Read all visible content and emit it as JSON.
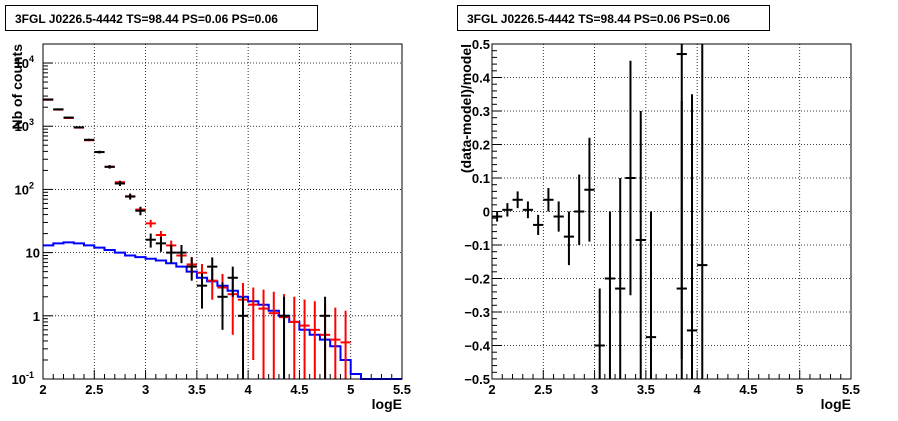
{
  "chart_data": [
    {
      "type": "line",
      "title": "3FGL J0226.5-4442 TS=98.44 PS=0.06 PS=0.06",
      "xlabel": "logE",
      "ylabel": "Nb of counts",
      "xlim": [
        2,
        5.5
      ],
      "ylim": [
        0.1,
        20000
      ],
      "yscale": "log",
      "grid": true,
      "x_ticks": [
        "2",
        "2.5",
        "3",
        "3.5",
        "4",
        "4.5",
        "5",
        "5.5"
      ],
      "y_ticks": [
        {
          "value": 0.1,
          "base": "10",
          "exp": "-1"
        },
        {
          "value": 1,
          "base": "1",
          "exp": ""
        },
        {
          "value": 10,
          "base": "10",
          "exp": ""
        },
        {
          "value": 100,
          "base": "10",
          "exp": "2"
        },
        {
          "value": 1000,
          "base": "10",
          "exp": "3"
        },
        {
          "value": 10000,
          "base": "10",
          "exp": "4"
        }
      ],
      "series": [
        {
          "color": "#000000",
          "points": [
            {
              "x": 2.05,
              "y": 2650,
              "lo": 2580,
              "hi": 2720
            },
            {
              "x": 2.15,
              "y": 1850,
              "lo": 1800,
              "hi": 1900
            },
            {
              "x": 2.25,
              "y": 1370,
              "lo": 1330,
              "hi": 1410
            },
            {
              "x": 2.35,
              "y": 960,
              "lo": 930,
              "hi": 990
            },
            {
              "x": 2.45,
              "y": 610,
              "lo": 585,
              "hi": 635
            },
            {
              "x": 2.55,
              "y": 390,
              "lo": 370,
              "hi": 410
            },
            {
              "x": 2.65,
              "y": 228,
              "lo": 213,
              "hi": 243
            },
            {
              "x": 2.75,
              "y": 124,
              "lo": 113,
              "hi": 135
            },
            {
              "x": 2.85,
              "y": 77,
              "lo": 69,
              "hi": 86
            },
            {
              "x": 2.95,
              "y": 46,
              "lo": 39,
              "hi": 53
            },
            {
              "x": 3.05,
              "y": 16,
              "lo": 12,
              "hi": 20
            },
            {
              "x": 3.15,
              "y": 14,
              "lo": 10.3,
              "hi": 17.7
            },
            {
              "x": 3.25,
              "y": 10,
              "lo": 6.8,
              "hi": 13.2
            },
            {
              "x": 3.35,
              "y": 10,
              "lo": 6.8,
              "hi": 13.2
            },
            {
              "x": 3.45,
              "y": 6,
              "lo": 3.6,
              "hi": 8.4
            },
            {
              "x": 3.55,
              "y": 3,
              "lo": 1.3,
              "hi": 4.7
            },
            {
              "x": 3.65,
              "y": 6,
              "lo": 3.6,
              "hi": 8.4
            },
            {
              "x": 3.75,
              "y": 2,
              "lo": 0.6,
              "hi": 3.4
            },
            {
              "x": 3.85,
              "y": 4,
              "lo": 2,
              "hi": 6
            },
            {
              "x": 3.95,
              "y": 1,
              "lo": 0.1,
              "hi": 2
            },
            {
              "x": 4.35,
              "y": 1,
              "lo": 0.1,
              "hi": 2
            },
            {
              "x": 4.75,
              "y": 1,
              "lo": 0.1,
              "hi": 2
            }
          ]
        },
        {
          "color": "#ff0000",
          "points": [
            {
              "x": 2.05,
              "y": 2620,
              "lo": 2560,
              "hi": 2680
            },
            {
              "x": 2.15,
              "y": 1830,
              "lo": 1790,
              "hi": 1870
            },
            {
              "x": 2.25,
              "y": 1350,
              "lo": 1320,
              "hi": 1380
            },
            {
              "x": 2.35,
              "y": 950,
              "lo": 925,
              "hi": 975
            },
            {
              "x": 2.45,
              "y": 600,
              "lo": 580,
              "hi": 620
            },
            {
              "x": 2.55,
              "y": 390,
              "lo": 375,
              "hi": 405
            },
            {
              "x": 2.65,
              "y": 228,
              "lo": 218,
              "hi": 238
            },
            {
              "x": 2.75,
              "y": 130,
              "lo": 122,
              "hi": 138
            },
            {
              "x": 2.85,
              "y": 78,
              "lo": 72,
              "hi": 84
            },
            {
              "x": 2.95,
              "y": 48,
              "lo": 43,
              "hi": 53
            },
            {
              "x": 3.05,
              "y": 29,
              "lo": 25,
              "hi": 33
            },
            {
              "x": 3.15,
              "y": 19,
              "lo": 16,
              "hi": 22
            },
            {
              "x": 3.25,
              "y": 13,
              "lo": 10.5,
              "hi": 15.5
            },
            {
              "x": 3.35,
              "y": 9,
              "lo": 7,
              "hi": 11
            },
            {
              "x": 3.45,
              "y": 6.5,
              "lo": 4.5,
              "hi": 8.5
            },
            {
              "x": 3.55,
              "y": 4.8,
              "lo": 3.0,
              "hi": 6.6
            },
            {
              "x": 3.65,
              "y": 3.6,
              "lo": 1.8,
              "hi": 5.4
            },
            {
              "x": 3.75,
              "y": 2.8,
              "lo": 0.8,
              "hi": 4.6
            },
            {
              "x": 3.85,
              "y": 2.2,
              "lo": 0.5,
              "hi": 3.9
            },
            {
              "x": 3.95,
              "y": 1.8,
              "lo": 0.3,
              "hi": 3.3
            },
            {
              "x": 4.05,
              "y": 1.5,
              "lo": 0.2,
              "hi": 2.8
            },
            {
              "x": 4.15,
              "y": 1.3,
              "lo": 0.1,
              "hi": 2.6
            },
            {
              "x": 4.25,
              "y": 1.1,
              "lo": 0.1,
              "hi": 2.4
            },
            {
              "x": 4.35,
              "y": 0.95,
              "lo": 0.1,
              "hi": 2.2
            },
            {
              "x": 4.45,
              "y": 0.8,
              "lo": 0.1,
              "hi": 2.0
            },
            {
              "x": 4.55,
              "y": 0.7,
              "lo": 0.1,
              "hi": 1.8
            },
            {
              "x": 4.65,
              "y": 0.6,
              "lo": 0.1,
              "hi": 1.7
            },
            {
              "x": 4.75,
              "y": 0.5,
              "lo": 0.1,
              "hi": 1.5
            },
            {
              "x": 4.85,
              "y": 0.42,
              "lo": 0.1,
              "hi": 1.35
            },
            {
              "x": 4.95,
              "y": 0.38,
              "lo": 0.1,
              "hi": 1.2
            }
          ]
        },
        {
          "color": "#0000ff",
          "step_edges": [
            2.0,
            2.1,
            2.2,
            2.3,
            2.4,
            2.5,
            2.6,
            2.7,
            2.8,
            2.9,
            3.0,
            3.1,
            3.2,
            3.3,
            3.4,
            3.5,
            3.6,
            3.7,
            3.8,
            3.9,
            4.0,
            4.1,
            4.2,
            4.3,
            4.4,
            4.5,
            4.6,
            4.7,
            4.8,
            4.9,
            5.0,
            5.1,
            5.5
          ],
          "step_values": [
            13,
            14,
            14.5,
            14,
            13,
            12,
            11,
            10,
            9,
            8.5,
            8,
            7.5,
            6.8,
            6,
            5,
            4,
            3.5,
            3,
            2.5,
            2,
            1.7,
            1.5,
            1.2,
            1.0,
            0.8,
            0.6,
            0.5,
            0.42,
            0.33,
            0.2,
            0.12,
            0.1
          ]
        }
      ]
    },
    {
      "type": "scatter",
      "title": "3FGL J0226.5-4442 TS=98.44 PS=0.06 PS=0.06",
      "xlabel": "logE",
      "ylabel": "(data-model)/model",
      "xlim": [
        2,
        5.5
      ],
      "ylim": [
        -0.5,
        0.5
      ],
      "grid": true,
      "x_ticks": [
        "2",
        "2.5",
        "3",
        "3.5",
        "4",
        "4.5",
        "5",
        "5.5"
      ],
      "y_ticks": [
        "−0.5",
        "−0.4",
        "−0.3",
        "−0.2",
        "−0.1",
        "0",
        "0.1",
        "0.2",
        "0.3",
        "0.4",
        "0.5"
      ],
      "points": [
        {
          "x": 2.05,
          "y": -0.015,
          "lo": -0.03,
          "hi": 0.0
        },
        {
          "x": 2.15,
          "y": 0.005,
          "lo": -0.015,
          "hi": 0.025
        },
        {
          "x": 2.25,
          "y": 0.035,
          "lo": 0.01,
          "hi": 0.06
        },
        {
          "x": 2.35,
          "y": 0.005,
          "lo": -0.02,
          "hi": 0.03
        },
        {
          "x": 2.45,
          "y": -0.04,
          "lo": -0.07,
          "hi": -0.01
        },
        {
          "x": 2.55,
          "y": 0.035,
          "lo": 0.0,
          "hi": 0.07
        },
        {
          "x": 2.65,
          "y": -0.015,
          "lo": -0.06,
          "hi": 0.03
        },
        {
          "x": 2.75,
          "y": -0.075,
          "lo": -0.16,
          "hi": 0.0
        },
        {
          "x": 2.85,
          "y": 0.0,
          "lo": -0.1,
          "hi": 0.11
        },
        {
          "x": 2.95,
          "y": 0.065,
          "lo": -0.09,
          "hi": 0.22
        },
        {
          "x": 3.05,
          "y": -0.4,
          "lo": -0.5,
          "hi": -0.23
        },
        {
          "x": 3.15,
          "y": -0.2,
          "lo": -0.5,
          "hi": 0.0
        },
        {
          "x": 3.25,
          "y": -0.23,
          "lo": -0.5,
          "hi": 0.1
        },
        {
          "x": 3.35,
          "y": 0.1,
          "lo": -0.25,
          "hi": 0.45
        },
        {
          "x": 3.45,
          "y": -0.085,
          "lo": -0.5,
          "hi": 0.3
        },
        {
          "x": 3.55,
          "y": -0.375,
          "lo": -0.5,
          "hi": 0.0
        },
        {
          "x": 3.85,
          "y": -0.23,
          "lo": -0.5,
          "hi": 0.33
        },
        {
          "x": 3.85,
          "y": 0.47,
          "lo": -0.44,
          "hi": 0.5
        },
        {
          "x": 3.95,
          "y": -0.355,
          "lo": -0.5,
          "hi": 0.35
        },
        {
          "x": 4.05,
          "y": -0.16,
          "lo": -0.5,
          "hi": 0.5
        }
      ]
    }
  ]
}
